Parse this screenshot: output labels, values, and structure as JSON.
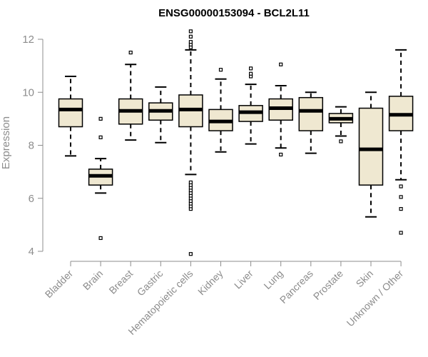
{
  "chart_data": {
    "type": "boxplot",
    "title": "ENSG00000153094 - BCL2L11",
    "xlabel": "",
    "ylabel": "Expression",
    "ylim": [
      3.8,
      12.3
    ],
    "yticks": [
      4,
      6,
      8,
      10,
      12
    ],
    "box_fill": "#efe8d1",
    "categories": [
      "Bladder",
      "Brain",
      "Breast",
      "Gastric",
      "Hematopoietic cells",
      "Kidney",
      "Liver",
      "Lung",
      "Pancreas",
      "Prostate",
      "Skin",
      "Unknown / Other"
    ],
    "boxes": [
      {
        "name": "Bladder",
        "whisker_low": 7.6,
        "q1": 8.7,
        "median": 9.35,
        "q3": 9.75,
        "whisker_high": 10.6,
        "outliers": []
      },
      {
        "name": "Brain",
        "whisker_low": 6.2,
        "q1": 6.5,
        "median": 6.85,
        "q3": 7.1,
        "whisker_high": 7.5,
        "outliers": [
          4.5,
          8.3,
          9.0
        ]
      },
      {
        "name": "Breast",
        "whisker_low": 8.2,
        "q1": 8.8,
        "median": 9.3,
        "q3": 9.75,
        "whisker_high": 11.05,
        "outliers": [
          11.5
        ]
      },
      {
        "name": "Gastric",
        "whisker_low": 8.1,
        "q1": 8.95,
        "median": 9.3,
        "q3": 9.6,
        "whisker_high": 10.2,
        "outliers": []
      },
      {
        "name": "Hematopoietic cells",
        "whisker_low": 6.9,
        "q1": 8.7,
        "median": 9.35,
        "q3": 9.9,
        "whisker_high": 11.6,
        "outliers": [
          3.9,
          5.6,
          5.7,
          5.8,
          5.9,
          6.0,
          6.1,
          6.2,
          6.3,
          6.4,
          6.5,
          6.6,
          11.7,
          11.8,
          11.9,
          12.1,
          12.3
        ]
      },
      {
        "name": "Kidney",
        "whisker_low": 7.75,
        "q1": 8.55,
        "median": 8.9,
        "q3": 9.35,
        "whisker_high": 10.5,
        "outliers": [
          10.85
        ]
      },
      {
        "name": "Liver",
        "whisker_low": 8.05,
        "q1": 8.9,
        "median": 9.25,
        "q3": 9.5,
        "whisker_high": 10.3,
        "outliers": [
          10.6,
          10.7,
          10.9
        ]
      },
      {
        "name": "Lung",
        "whisker_low": 7.9,
        "q1": 8.95,
        "median": 9.4,
        "q3": 9.75,
        "whisker_high": 10.25,
        "outliers": [
          7.65,
          11.05
        ]
      },
      {
        "name": "Pancreas",
        "whisker_low": 7.7,
        "q1": 8.55,
        "median": 9.3,
        "q3": 9.8,
        "whisker_high": 10.0,
        "outliers": []
      },
      {
        "name": "Prostate",
        "whisker_low": 8.35,
        "q1": 8.85,
        "median": 9.0,
        "q3": 9.2,
        "whisker_high": 9.45,
        "outliers": [
          8.15
        ]
      },
      {
        "name": "Skin",
        "whisker_low": 5.3,
        "q1": 6.5,
        "median": 7.85,
        "q3": 9.4,
        "whisker_high": 10.0,
        "outliers": []
      },
      {
        "name": "Unknown / Other",
        "whisker_low": 6.7,
        "q1": 8.55,
        "median": 9.15,
        "q3": 9.85,
        "whisker_high": 11.6,
        "outliers": [
          4.7,
          5.6,
          6.05,
          6.45
        ]
      }
    ]
  }
}
